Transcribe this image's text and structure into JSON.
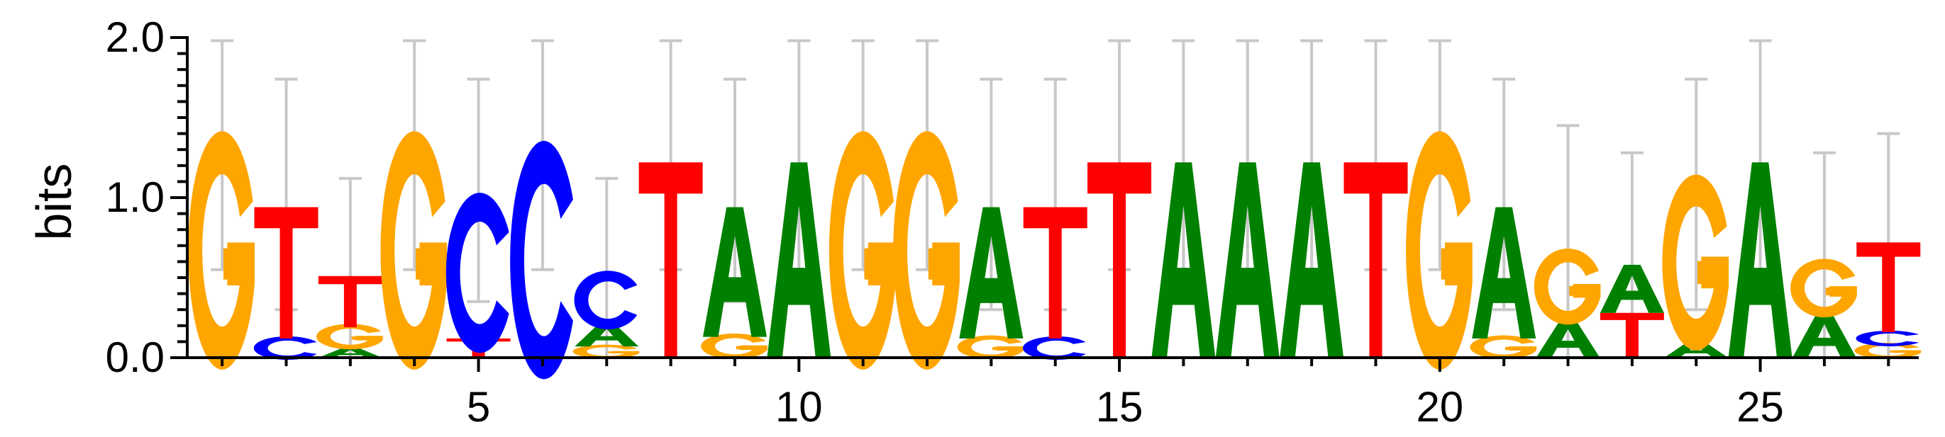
{
  "chart_data": {
    "type": "sequence-logo",
    "ylabel": "bits",
    "ylim": [
      0,
      2
    ],
    "y_ticks": [
      "0.0",
      "1.0",
      "2.0"
    ],
    "x_ticks": [
      5,
      10,
      15,
      20,
      25
    ],
    "positions": [
      {
        "pos": 1,
        "stack": [
          {
            "base": "G",
            "height": 1.22
          }
        ],
        "error": [
          0.55,
          1.98
        ]
      },
      {
        "pos": 2,
        "stack": [
          {
            "base": "C",
            "height": 0.12
          },
          {
            "base": "T",
            "height": 0.82
          }
        ],
        "error": [
          0.3,
          1.74
        ]
      },
      {
        "pos": 3,
        "stack": [
          {
            "base": "A",
            "height": 0.06
          },
          {
            "base": "G",
            "height": 0.13
          },
          {
            "base": "T",
            "height": 0.32
          }
        ],
        "error": [
          0.0,
          1.12
        ]
      },
      {
        "pos": 4,
        "stack": [
          {
            "base": "G",
            "height": 1.22
          }
        ],
        "error": [
          0.55,
          1.98
        ]
      },
      {
        "pos": 5,
        "stack": [
          {
            "base": "T",
            "height": 0.12
          },
          {
            "base": "C",
            "height": 0.82
          }
        ],
        "error": [
          0.35,
          1.74
        ]
      },
      {
        "pos": 6,
        "stack": [
          {
            "base": "C",
            "height": 1.22
          }
        ],
        "error": [
          0.55,
          1.98
        ]
      },
      {
        "pos": 7,
        "stack": [
          {
            "base": "G",
            "height": 0.07
          },
          {
            "base": "A",
            "height": 0.14
          },
          {
            "base": "C",
            "height": 0.3
          }
        ],
        "error": [
          0.0,
          1.12
        ]
      },
      {
        "pos": 8,
        "stack": [
          {
            "base": "T",
            "height": 1.22
          }
        ],
        "error": [
          0.55,
          1.98
        ]
      },
      {
        "pos": 9,
        "stack": [
          {
            "base": "G",
            "height": 0.13
          },
          {
            "base": "A",
            "height": 0.81
          }
        ],
        "error": [
          0.35,
          1.74
        ]
      },
      {
        "pos": 10,
        "stack": [
          {
            "base": "A",
            "height": 1.22
          }
        ],
        "error": [
          0.55,
          1.98
        ]
      },
      {
        "pos": 11,
        "stack": [
          {
            "base": "G",
            "height": 1.22
          }
        ],
        "error": [
          0.55,
          1.98
        ]
      },
      {
        "pos": 12,
        "stack": [
          {
            "base": "G",
            "height": 1.22
          }
        ],
        "error": [
          0.55,
          1.98
        ]
      },
      {
        "pos": 13,
        "stack": [
          {
            "base": "G",
            "height": 0.12
          },
          {
            "base": "A",
            "height": 0.82
          }
        ],
        "error": [
          0.3,
          1.74
        ]
      },
      {
        "pos": 14,
        "stack": [
          {
            "base": "C",
            "height": 0.12
          },
          {
            "base": "T",
            "height": 0.82
          }
        ],
        "error": [
          0.3,
          1.74
        ]
      },
      {
        "pos": 15,
        "stack": [
          {
            "base": "T",
            "height": 1.22
          }
        ],
        "error": [
          0.55,
          1.98
        ]
      },
      {
        "pos": 16,
        "stack": [
          {
            "base": "A",
            "height": 1.22
          }
        ],
        "error": [
          0.55,
          1.98
        ]
      },
      {
        "pos": 17,
        "stack": [
          {
            "base": "A",
            "height": 1.22
          }
        ],
        "error": [
          0.55,
          1.98
        ]
      },
      {
        "pos": 18,
        "stack": [
          {
            "base": "A",
            "height": 1.22
          }
        ],
        "error": [
          0.55,
          1.98
        ]
      },
      {
        "pos": 19,
        "stack": [
          {
            "base": "T",
            "height": 1.22
          }
        ],
        "error": [
          0.55,
          1.98
        ]
      },
      {
        "pos": 20,
        "stack": [
          {
            "base": "G",
            "height": 1.22
          }
        ],
        "error": [
          0.55,
          1.98
        ]
      },
      {
        "pos": 21,
        "stack": [
          {
            "base": "G",
            "height": 0.12
          },
          {
            "base": "A",
            "height": 0.82
          }
        ],
        "error": [
          0.3,
          1.74
        ]
      },
      {
        "pos": 22,
        "stack": [
          {
            "base": "A",
            "height": 0.23
          },
          {
            "base": "G",
            "height": 0.39
          }
        ],
        "error": [
          0.0,
          1.45
        ]
      },
      {
        "pos": 23,
        "stack": [
          {
            "base": "T",
            "height": 0.28
          },
          {
            "base": "A",
            "height": 0.3
          }
        ],
        "error": [
          0.0,
          1.28
        ]
      },
      {
        "pos": 24,
        "stack": [
          {
            "base": "A",
            "height": 0.1
          },
          {
            "base": "G",
            "height": 0.9
          }
        ],
        "error": [
          0.3,
          1.74
        ]
      },
      {
        "pos": 25,
        "stack": [
          {
            "base": "A",
            "height": 1.22
          }
        ],
        "error": [
          0.55,
          1.98
        ]
      },
      {
        "pos": 26,
        "stack": [
          {
            "base": "A",
            "height": 0.27
          },
          {
            "base": "G",
            "height": 0.3
          }
        ],
        "error": [
          0.0,
          1.28
        ]
      },
      {
        "pos": 27,
        "stack": [
          {
            "base": "G",
            "height": 0.08
          },
          {
            "base": "C",
            "height": 0.08
          },
          {
            "base": "T",
            "height": 0.56
          }
        ],
        "error": [
          0.0,
          1.4
        ]
      }
    ],
    "colors": {
      "A": "#008000",
      "C": "#0000ff",
      "G": "#ffa500",
      "T": "#ff0000",
      "error_bar": "#c8c8c8"
    }
  }
}
